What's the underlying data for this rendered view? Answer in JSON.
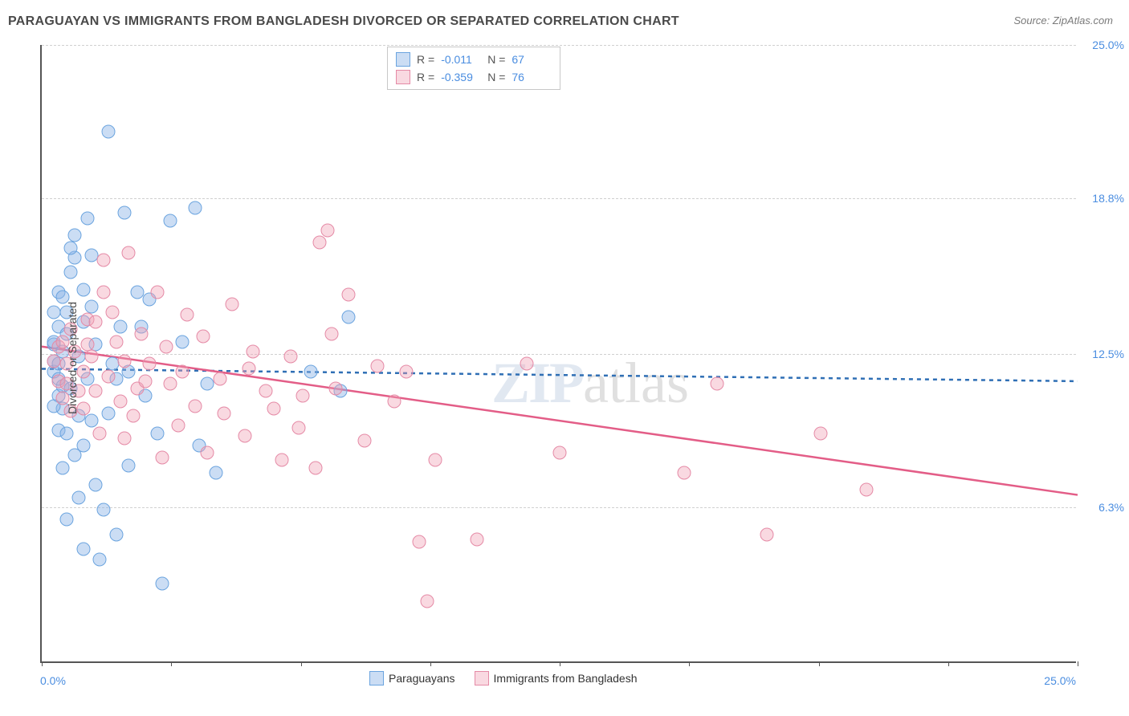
{
  "title": "PARAGUAYAN VS IMMIGRANTS FROM BANGLADESH DIVORCED OR SEPARATED CORRELATION CHART",
  "source": "Source: ZipAtlas.com",
  "ylabel": "Divorced or Separated",
  "watermark_zip": "ZIP",
  "watermark_atlas": "atlas",
  "chart": {
    "type": "scatter",
    "background_color": "#ffffff",
    "grid_color": "#d0d0d0",
    "axis_color": "#555555",
    "tick_color": "#4a8de0",
    "xlim": [
      0,
      25
    ],
    "ylim": [
      0,
      25
    ],
    "yticks": [
      {
        "v": 6.3,
        "label": "6.3%"
      },
      {
        "v": 12.5,
        "label": "12.5%"
      },
      {
        "v": 18.8,
        "label": "18.8%"
      },
      {
        "v": 25.0,
        "label": "25.0%"
      }
    ],
    "xtick_left": "0.0%",
    "xtick_right": "25.0%",
    "xtick_marks": [
      0,
      3.125,
      6.25,
      9.375,
      12.5,
      15.625,
      18.75,
      21.875,
      25
    ],
    "series": [
      {
        "name": "Paraguayans",
        "fill": "rgba(140,180,230,0.45)",
        "stroke": "#6ba4df",
        "trend_color": "#2f6fb5",
        "trend_dash": "5,5",
        "trend_y_start": 11.9,
        "trend_y_end": 11.4,
        "R": "-0.011",
        "N": "67",
        "points": [
          [
            0.3,
            11.8
          ],
          [
            0.3,
            12.9
          ],
          [
            0.4,
            13.6
          ],
          [
            0.3,
            14.2
          ],
          [
            0.4,
            10.8
          ],
          [
            0.4,
            9.4
          ],
          [
            0.3,
            12.2
          ],
          [
            0.5,
            11.2
          ],
          [
            0.5,
            12.6
          ],
          [
            0.6,
            13.3
          ],
          [
            0.5,
            10.3
          ],
          [
            0.4,
            15.0
          ],
          [
            0.6,
            14.2
          ],
          [
            0.7,
            15.8
          ],
          [
            0.8,
            16.4
          ],
          [
            0.9,
            10.0
          ],
          [
            1.0,
            8.8
          ],
          [
            1.1,
            18.0
          ],
          [
            1.2,
            16.5
          ],
          [
            1.3,
            7.2
          ],
          [
            1.5,
            6.2
          ],
          [
            1.6,
            21.5
          ],
          [
            1.4,
            4.2
          ],
          [
            1.8,
            5.2
          ],
          [
            2.0,
            18.2
          ],
          [
            2.1,
            11.8
          ],
          [
            2.3,
            15.0
          ],
          [
            2.5,
            10.8
          ],
          [
            2.6,
            14.7
          ],
          [
            2.8,
            9.3
          ],
          [
            2.9,
            3.2
          ],
          [
            3.1,
            17.9
          ],
          [
            3.4,
            13.0
          ],
          [
            3.7,
            18.4
          ],
          [
            3.8,
            8.8
          ],
          [
            4.0,
            11.3
          ],
          [
            4.2,
            7.7
          ],
          [
            7.2,
            11.0
          ],
          [
            7.4,
            14.0
          ],
          [
            6.5,
            11.8
          ],
          [
            0.9,
            12.4
          ],
          [
            1.0,
            13.8
          ],
          [
            1.1,
            11.5
          ],
          [
            1.2,
            9.8
          ],
          [
            1.3,
            12.9
          ],
          [
            1.7,
            12.1
          ],
          [
            1.9,
            13.6
          ],
          [
            0.8,
            8.4
          ],
          [
            0.7,
            11.1
          ],
          [
            0.6,
            9.3
          ],
          [
            0.5,
            14.8
          ],
          [
            0.4,
            11.5
          ],
          [
            0.4,
            12.1
          ],
          [
            0.3,
            10.4
          ],
          [
            0.3,
            13.0
          ],
          [
            0.9,
            6.7
          ],
          [
            1.0,
            15.1
          ],
          [
            1.2,
            14.4
          ],
          [
            1.6,
            10.1
          ],
          [
            1.8,
            11.5
          ],
          [
            2.1,
            8.0
          ],
          [
            2.4,
            13.6
          ],
          [
            0.7,
            16.8
          ],
          [
            0.8,
            17.3
          ],
          [
            0.5,
            7.9
          ],
          [
            0.6,
            5.8
          ],
          [
            1.0,
            4.6
          ]
        ]
      },
      {
        "name": "Immigrants from Bangladesh",
        "fill": "rgba(240,160,180,0.40)",
        "stroke": "#e58aa6",
        "trend_color": "#e35d87",
        "trend_dash": "",
        "trend_y_start": 12.8,
        "trend_y_end": 6.8,
        "R": "-0.359",
        "N": "76",
        "points": [
          [
            0.3,
            12.2
          ],
          [
            0.4,
            12.8
          ],
          [
            0.4,
            11.4
          ],
          [
            0.5,
            13.0
          ],
          [
            0.5,
            10.7
          ],
          [
            0.6,
            12.1
          ],
          [
            0.6,
            11.3
          ],
          [
            0.7,
            13.5
          ],
          [
            0.7,
            10.2
          ],
          [
            0.8,
            12.6
          ],
          [
            0.9,
            11.0
          ],
          [
            1.0,
            10.3
          ],
          [
            1.1,
            13.9
          ],
          [
            1.2,
            12.4
          ],
          [
            1.3,
            11.0
          ],
          [
            1.4,
            9.3
          ],
          [
            1.5,
            16.3
          ],
          [
            1.6,
            11.6
          ],
          [
            1.7,
            14.2
          ],
          [
            1.9,
            10.6
          ],
          [
            2.0,
            9.1
          ],
          [
            2.1,
            16.6
          ],
          [
            2.3,
            11.1
          ],
          [
            2.4,
            13.3
          ],
          [
            2.6,
            12.1
          ],
          [
            2.8,
            15.0
          ],
          [
            2.9,
            8.3
          ],
          [
            3.1,
            11.3
          ],
          [
            3.3,
            9.6
          ],
          [
            3.5,
            14.1
          ],
          [
            3.7,
            10.4
          ],
          [
            4.0,
            8.5
          ],
          [
            4.3,
            11.5
          ],
          [
            4.6,
            14.5
          ],
          [
            4.9,
            9.2
          ],
          [
            5.1,
            12.6
          ],
          [
            5.4,
            11.0
          ],
          [
            5.8,
            8.2
          ],
          [
            6.0,
            12.4
          ],
          [
            6.3,
            10.8
          ],
          [
            6.6,
            7.9
          ],
          [
            6.9,
            17.5
          ],
          [
            6.7,
            17.0
          ],
          [
            7.1,
            11.1
          ],
          [
            7.4,
            14.9
          ],
          [
            7.8,
            9.0
          ],
          [
            8.1,
            12.0
          ],
          [
            8.5,
            10.6
          ],
          [
            8.8,
            11.8
          ],
          [
            9.1,
            4.9
          ],
          [
            9.3,
            2.5
          ],
          [
            9.5,
            8.2
          ],
          [
            10.5,
            5.0
          ],
          [
            11.7,
            12.1
          ],
          [
            12.5,
            8.5
          ],
          [
            15.5,
            7.7
          ],
          [
            16.3,
            11.3
          ],
          [
            17.5,
            5.2
          ],
          [
            18.8,
            9.3
          ],
          [
            19.9,
            7.0
          ],
          [
            1.0,
            11.8
          ],
          [
            1.1,
            12.9
          ],
          [
            1.3,
            13.8
          ],
          [
            1.5,
            15.0
          ],
          [
            1.8,
            13.0
          ],
          [
            2.0,
            12.2
          ],
          [
            2.2,
            10.0
          ],
          [
            2.5,
            11.4
          ],
          [
            3.0,
            12.8
          ],
          [
            3.4,
            11.8
          ],
          [
            3.9,
            13.2
          ],
          [
            4.4,
            10.1
          ],
          [
            5.0,
            11.9
          ],
          [
            5.6,
            10.3
          ],
          [
            6.2,
            9.5
          ],
          [
            7.0,
            13.3
          ]
        ]
      }
    ],
    "point_radius": 8.5,
    "legend_position": "top-center",
    "bottom_legend_labels": [
      "Paraguayans",
      "Immigrants from Bangladesh"
    ]
  }
}
